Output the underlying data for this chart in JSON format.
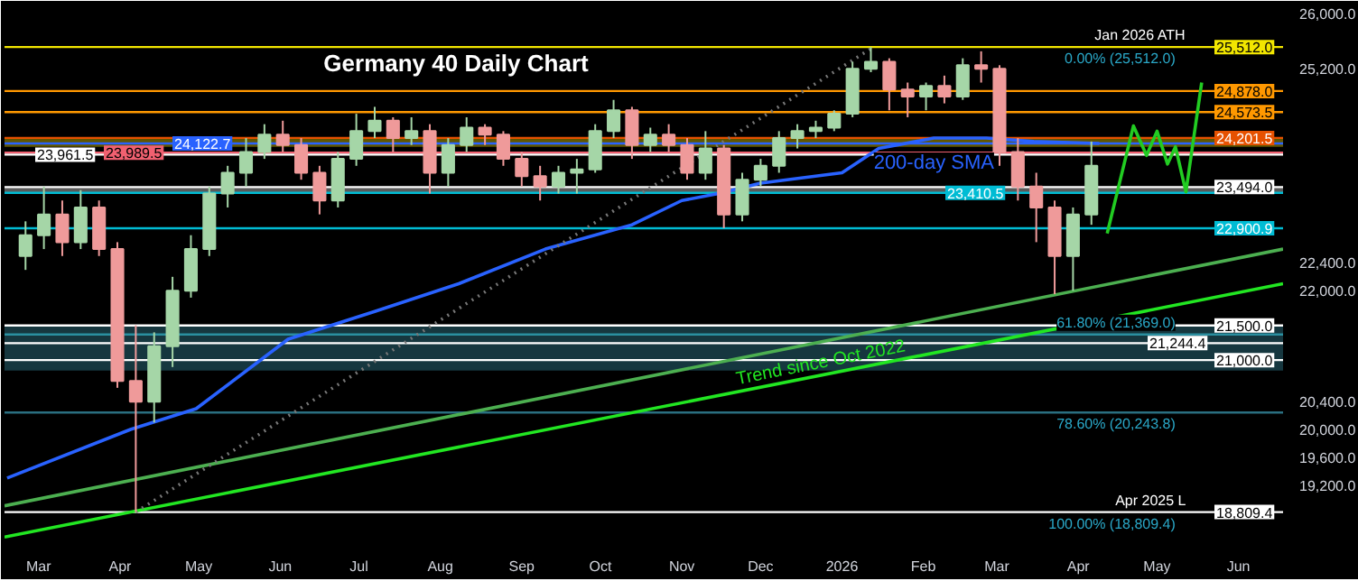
{
  "chart_data": {
    "type": "candlestick",
    "title": "Germany 40 Daily Chart",
    "xlim": [
      "2025-02-16",
      "2026-06-18"
    ],
    "xticks": [
      {
        "value": "2025-03-01",
        "label": "Mar"
      },
      {
        "value": "2025-04-01",
        "label": "Apr"
      },
      {
        "value": "2025-05-01",
        "label": "May"
      },
      {
        "value": "2025-06-01",
        "label": "Jun"
      },
      {
        "value": "2025-07-01",
        "label": "Jul"
      },
      {
        "value": "2025-08-01",
        "label": "Aug"
      },
      {
        "value": "2025-09-01",
        "label": "Sep"
      },
      {
        "value": "2025-10-01",
        "label": "Oct"
      },
      {
        "value": "2025-11-01",
        "label": "Nov"
      },
      {
        "value": "2025-12-01",
        "label": "Dec"
      },
      {
        "value": "2026-01-01",
        "label": "2026"
      },
      {
        "value": "2026-02-01",
        "label": "Feb"
      },
      {
        "value": "2026-03-01",
        "label": "Mar"
      },
      {
        "value": "2026-04-01",
        "label": "Apr"
      },
      {
        "value": "2026-05-01",
        "label": "May"
      },
      {
        "value": "2026-06-01",
        "label": "Jun"
      }
    ],
    "ylim": [
      18375,
      26125
    ],
    "yticks": [
      {
        "value": 19200,
        "label": "19,200.0"
      },
      {
        "value": 19600,
        "label": "19,600.0"
      },
      {
        "value": 20000,
        "label": "20,000.0"
      },
      {
        "value": 20400,
        "label": "20,400.0"
      },
      {
        "value": 22000,
        "label": "22,000.0"
      },
      {
        "value": 22400,
        "label": "22,400.0"
      },
      {
        "value": 25200,
        "label": "25,200.0"
      },
      {
        "value": 26000,
        "label": "26,000.0"
      }
    ],
    "series": [
      {
        "type": "line",
        "name": "200-day SMA",
        "color": "#2962ff",
        "x": [
          "2025-02-17",
          "2025-04-05",
          "2025-04-30",
          "2025-06-04",
          "2025-07-07",
          "2025-08-08",
          "2025-09-10",
          "2025-10-13",
          "2025-11-01",
          "2025-11-15",
          "2025-12-01",
          "2026-01-01",
          "2026-01-15",
          "2026-02-05",
          "2026-02-25",
          "2026-03-15",
          "2026-04-09"
        ],
        "values": [
          19300,
          20000,
          20300,
          21300,
          21700,
          22100,
          22600,
          22950,
          23300,
          23400,
          23550,
          23700,
          24050,
          24200,
          24200,
          24150,
          24122.7
        ]
      },
      {
        "type": "line",
        "color": "#4caf50",
        "x": [
          "2025-02-16",
          "2026-06-18"
        ],
        "values": [
          18900,
          22600
        ]
      },
      {
        "type": "line",
        "name": "Trend since Oct 2022",
        "color": "#22e622",
        "x": [
          "2025-02-16",
          "2026-06-18"
        ],
        "values": [
          18450,
          22100
        ]
      },
      {
        "type": "line",
        "color": "#777777",
        "line_style": "dotted",
        "x": [
          "2025-04-07",
          "2026-01-13"
        ],
        "values": [
          18809.4,
          25512
        ]
      },
      {
        "type": "line",
        "color": "#22cc22",
        "x": [
          "2026-04-12",
          "2026-04-22",
          "2026-04-27",
          "2026-05-01",
          "2026-05-05",
          "2026-05-08",
          "2026-05-12",
          "2026-05-18"
        ],
        "values": [
          22825,
          24375,
          23950,
          24300,
          23825,
          24075,
          23425,
          25000
        ]
      },
      {
        "x": [
          "2025-02-24",
          "2025-03-03",
          "2025-03-10",
          "2025-03-17",
          "2025-03-24",
          "2025-03-31",
          "2025-04-07",
          "2025-04-14",
          "2025-04-21",
          "2025-04-28",
          "2025-05-05",
          "2025-05-12",
          "2025-05-19",
          "2025-05-26",
          "2025-06-02",
          "2025-06-09",
          "2025-06-16",
          "2025-06-23",
          "2025-06-30",
          "2025-07-07",
          "2025-07-14",
          "2025-07-21",
          "2025-07-28",
          "2025-08-04",
          "2025-08-11",
          "2025-08-18",
          "2025-08-25",
          "2025-09-01",
          "2025-09-08",
          "2025-09-15",
          "2025-09-22",
          "2025-09-29",
          "2025-10-06",
          "2025-10-13",
          "2025-10-20",
          "2025-10-27",
          "2025-11-03",
          "2025-11-10",
          "2025-11-17",
          "2025-11-24",
          "2025-12-01",
          "2025-12-08",
          "2025-12-15",
          "2025-12-22",
          "2025-12-29",
          "2026-01-05",
          "2026-01-12",
          "2026-01-19",
          "2026-01-26",
          "2026-02-02",
          "2026-02-09",
          "2026-02-16",
          "2026-02-23",
          "2026-03-02",
          "2026-03-09",
          "2026-03-16",
          "2026-03-23",
          "2026-03-30",
          "2026-04-06"
        ],
        "ohlc": [
          [
            22500,
            23000,
            22300,
            22800
          ],
          [
            22800,
            23500,
            22600,
            23100
          ],
          [
            23100,
            23300,
            22500,
            22700
          ],
          [
            22700,
            23450,
            22600,
            23200
          ],
          [
            23200,
            23300,
            22500,
            22600
          ],
          [
            22600,
            22700,
            20600,
            20700
          ],
          [
            20700,
            21500,
            18809.4,
            20400
          ],
          [
            20400,
            21400,
            20100,
            21200
          ],
          [
            21200,
            22200,
            20900,
            22000
          ],
          [
            22000,
            22800,
            21900,
            22600
          ],
          [
            22600,
            23500,
            22500,
            23400
          ],
          [
            23400,
            23800,
            23200,
            23700
          ],
          [
            23700,
            24200,
            23500,
            24000
          ],
          [
            24000,
            24400,
            23900,
            24250
          ],
          [
            24250,
            24450,
            24000,
            24100
          ],
          [
            24100,
            24200,
            23600,
            23700
          ],
          [
            23700,
            23800,
            23100,
            23300
          ],
          [
            23300,
            24000,
            23200,
            23900
          ],
          [
            23900,
            24550,
            23800,
            24300
          ],
          [
            24300,
            24650,
            24200,
            24450
          ],
          [
            24450,
            24500,
            24000,
            24200
          ],
          [
            24200,
            24500,
            24100,
            24300
          ],
          [
            24300,
            24400,
            23400,
            23700
          ],
          [
            23700,
            24200,
            23500,
            24100
          ],
          [
            24100,
            24500,
            24000,
            24350
          ],
          [
            24350,
            24400,
            24100,
            24250
          ],
          [
            24250,
            24300,
            23800,
            23900
          ],
          [
            23900,
            24000,
            23500,
            23650
          ],
          [
            23650,
            23800,
            23300,
            23500
          ],
          [
            23500,
            23800,
            23400,
            23700
          ],
          [
            23700,
            23900,
            23400,
            23750
          ],
          [
            23750,
            24400,
            23700,
            24300
          ],
          [
            24300,
            24750,
            24200,
            24600
          ],
          [
            24600,
            24650,
            23900,
            24100
          ],
          [
            24100,
            24350,
            24000,
            24250
          ],
          [
            24250,
            24400,
            24000,
            24100
          ],
          [
            24100,
            24200,
            23600,
            23700
          ],
          [
            23700,
            24300,
            23600,
            24050
          ],
          [
            24050,
            24100,
            22900.9,
            23100
          ],
          [
            23100,
            23700,
            23000,
            23600
          ],
          [
            23600,
            23900,
            23500,
            23800
          ],
          [
            23800,
            24300,
            23700,
            24200
          ],
          [
            24200,
            24400,
            24050,
            24300
          ],
          [
            24300,
            24450,
            24200,
            24350
          ],
          [
            24350,
            24600,
            24300,
            24550
          ],
          [
            24550,
            25300,
            24500,
            25200
          ],
          [
            25200,
            25512,
            25150,
            25300
          ],
          [
            25300,
            25350,
            24600,
            24900
          ],
          [
            24900,
            25000,
            24500,
            24800
          ],
          [
            24800,
            25000,
            24600,
            24950
          ],
          [
            24950,
            25100,
            24700,
            24800
          ],
          [
            24800,
            25350,
            24750,
            25250
          ],
          [
            25250,
            25450,
            25000,
            25200
          ],
          [
            25200,
            25250,
            23800,
            24000
          ],
          [
            24000,
            24200,
            23300,
            23500
          ],
          [
            23500,
            23700,
            22700,
            23200
          ],
          [
            23200,
            23300,
            21950,
            22500
          ],
          [
            22500,
            23200,
            22000,
            23100
          ],
          [
            23100,
            24150,
            22950,
            23800
          ]
        ],
        "colors": [
          "#a5d6a7",
          "#a5d6a7",
          "#ef9a9a",
          "#a5d6a7",
          "#ef9a9a",
          "#ef9a9a",
          "#ef9a9a",
          "#a5d6a7",
          "#a5d6a7",
          "#a5d6a7",
          "#a5d6a7",
          "#a5d6a7",
          "#a5d6a7",
          "#a5d6a7",
          "#ef9a9a",
          "#ef9a9a",
          "#ef9a9a",
          "#a5d6a7",
          "#a5d6a7",
          "#a5d6a7",
          "#ef9a9a",
          "#a5d6a7",
          "#ef9a9a",
          "#a5d6a7",
          "#a5d6a7",
          "#ef9a9a",
          "#ef9a9a",
          "#ef9a9a",
          "#ef9a9a",
          "#a5d6a7",
          "#a5d6a7",
          "#a5d6a7",
          "#a5d6a7",
          "#ef9a9a",
          "#a5d6a7",
          "#ef9a9a",
          "#ef9a9a",
          "#a5d6a7",
          "#ef9a9a",
          "#a5d6a7",
          "#a5d6a7",
          "#a5d6a7",
          "#a5d6a7",
          "#a5d6a7",
          "#a5d6a7",
          "#a5d6a7",
          "#a5d6a7",
          "#ef9a9a",
          "#ef9a9a",
          "#a5d6a7",
          "#ef9a9a",
          "#a5d6a7",
          "#ef9a9a",
          "#ef9a9a",
          "#ef9a9a",
          "#ef9a9a",
          "#ef9a9a",
          "#a5d6a7",
          "#a5d6a7"
        ]
      }
    ],
    "bands": [
      {
        "axis": "y",
        "from": 20850,
        "to": 21500,
        "color": "#1f4e5a"
      },
      {
        "axis": "y",
        "from": 24075,
        "to": 24201.5,
        "color": "#8a7a00"
      },
      {
        "axis": "y",
        "from": 23410.5,
        "to": 23494,
        "color": "#808080"
      }
    ],
    "ref_lines": [
      {
        "axis": "y",
        "value": 25512,
        "label": "25,512.0",
        "color": "#f2e600"
      },
      {
        "axis": "y",
        "value": 24878,
        "label": "24,878.0",
        "color": "#ff9800"
      },
      {
        "axis": "y",
        "value": 24573.5,
        "label": "24,573.5",
        "color": "#ff9800"
      },
      {
        "axis": "y",
        "value": 24201.5,
        "label": "24,201.5",
        "color": "#e65100"
      },
      {
        "axis": "y",
        "value": 24122.7,
        "label": "24,122.7",
        "color": "#2962ff"
      },
      {
        "axis": "y",
        "value": 23989.5,
        "label": "23,989.5",
        "color": "#f06070"
      },
      {
        "axis": "y",
        "value": 23961.5,
        "label": "23,961.5",
        "color": "#ffffff"
      },
      {
        "axis": "y",
        "value": 23494,
        "label": "23,494.0",
        "color": "#ffffff"
      },
      {
        "axis": "y",
        "value": 23410.5,
        "label": "23,410.5",
        "color": "#00bcd4"
      },
      {
        "axis": "y",
        "value": 22900.9,
        "label": "22,900.9",
        "color": "#00bcd4"
      },
      {
        "axis": "y",
        "value": 21500,
        "label": "21,500.0",
        "color": "#ffffff"
      },
      {
        "axis": "y",
        "value": 21369,
        "label": null,
        "color": "#2a8fa0"
      },
      {
        "axis": "y",
        "value": 21244.4,
        "label": "21,244.4",
        "color": "#ffffff"
      },
      {
        "axis": "y",
        "value": 21000,
        "label": "21,000.0",
        "color": "#ffffff"
      },
      {
        "axis": "y",
        "value": 20243.8,
        "label": null,
        "color": "#2a6f80"
      },
      {
        "axis": "y",
        "value": 18809.4,
        "label": "18,809.4",
        "color": "#ffffff"
      }
    ],
    "annotations": [
      {
        "text": "Jan 2026 ATH",
        "x": "2026-05-12",
        "y": 25512
      },
      {
        "text": "0.00% (25,512.0)",
        "x": "2026-05-08",
        "y": 25512
      },
      {
        "text": "Apr 2025 L",
        "x": "2026-05-12",
        "y": 18809.4
      },
      {
        "text": "100.00% (18,809.4)",
        "x": "2026-05-08",
        "y": 18809.4
      },
      {
        "text": "61.80% (21,369.0)",
        "x": "2026-05-08",
        "y": 21369
      },
      {
        "text": "78.60% (20,243.8)",
        "x": "2026-05-08",
        "y": 20243.8
      }
    ]
  }
}
